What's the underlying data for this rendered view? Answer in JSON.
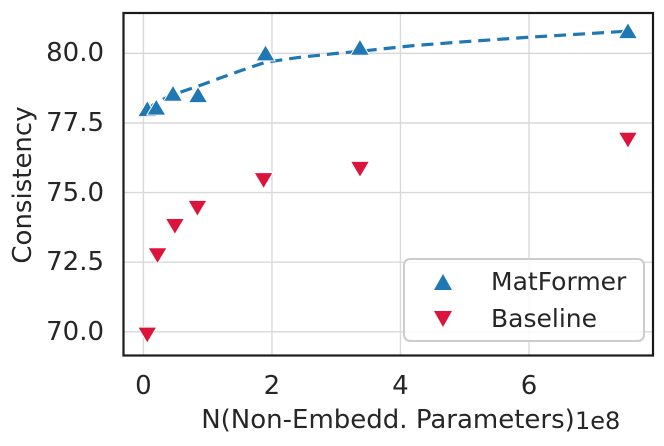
{
  "figure": {
    "background": "#ffffff"
  },
  "colors": {
    "grid": "#d9d9d9",
    "spine": "#1a1a1a",
    "text": "#262626",
    "matformer_blue": "#1f77b4",
    "baseline_red": "#dc143c"
  },
  "chart_data": {
    "type": "scatter",
    "title": "",
    "xlabel": "N(Non-Embedd. Parameters)",
    "x_offset_text": "1e8",
    "ylabel": "Consistency",
    "xlim": [
      -0.31,
      7.93
    ],
    "ylim": [
      69.15,
      81.45
    ],
    "grid": true,
    "legend_position": "lower right",
    "x_ticks": {
      "values": [
        0,
        2,
        4,
        6
      ],
      "labels": [
        "0",
        "2",
        "4",
        "6"
      ]
    },
    "y_ticks": {
      "values": [
        70.0,
        72.5,
        75.0,
        77.5,
        80.0
      ],
      "labels": [
        "70.0",
        "72.5",
        "75.0",
        "77.5",
        "80.0"
      ]
    },
    "series": [
      {
        "name": "MatFormer",
        "marker": "triangle-up",
        "color": "#1f77b4",
        "points": [
          [
            0.06,
            78.0
          ],
          [
            0.2,
            78.05
          ],
          [
            0.46,
            78.55
          ],
          [
            0.85,
            78.5
          ],
          [
            1.9,
            80.0
          ],
          [
            3.37,
            80.2
          ],
          [
            7.54,
            80.8
          ]
        ]
      },
      {
        "name": "Baseline",
        "marker": "triangle-down",
        "color": "#dc143c",
        "points": [
          [
            0.06,
            69.9
          ],
          [
            0.22,
            72.75
          ],
          [
            0.49,
            73.8
          ],
          [
            0.84,
            74.45
          ],
          [
            1.87,
            75.45
          ],
          [
            3.37,
            75.85
          ],
          [
            7.54,
            76.9
          ]
        ]
      }
    ],
    "trendline": {
      "series": "MatFormer",
      "style": "dashed",
      "color": "#1f77b4",
      "points": [
        [
          0.06,
          77.97
        ],
        [
          0.15,
          78.15
        ],
        [
          0.3,
          78.35
        ],
        [
          0.5,
          78.55
        ],
        [
          0.85,
          78.82
        ],
        [
          1.2,
          79.12
        ],
        [
          1.6,
          79.45
        ],
        [
          1.9,
          79.68
        ],
        [
          2.4,
          79.85
        ],
        [
          3.0,
          80.0
        ],
        [
          3.4,
          80.08
        ],
        [
          4.2,
          80.28
        ],
        [
          5.0,
          80.42
        ],
        [
          6.0,
          80.58
        ],
        [
          7.0,
          80.72
        ],
        [
          7.54,
          80.8
        ]
      ]
    }
  }
}
